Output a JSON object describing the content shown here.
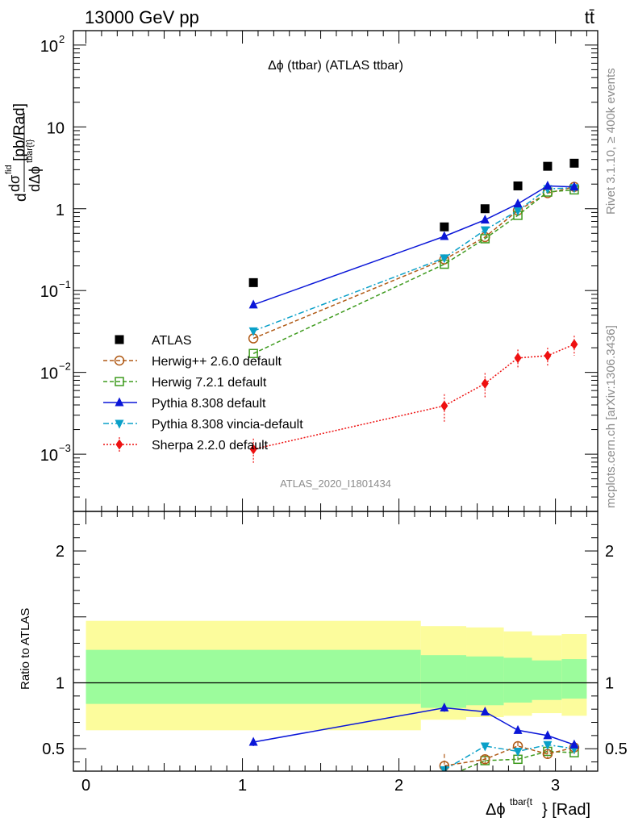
{
  "header": {
    "left": "13000 GeV pp",
    "right": "tt̄"
  },
  "side_labels": {
    "rivet": "Rivet 3.1.10, ≥ 400k events",
    "mcplots": "mcplots.cern.ch [arXiv:1306.3436]"
  },
  "chart_data": [
    {
      "type": "scatter",
      "panel": "main",
      "title": "Δϕ (ttbar) (ATLAS ttbar)",
      "watermark": "ATLAS_2020_I1801434",
      "ylabel": "dσ^{fid}/dΔϕ^{tbar{t}} [pb/Rad]",
      "yscale": "log",
      "ylim": [
        0.0002,
        150
      ],
      "xlim": [
        -0.08,
        3.27
      ],
      "yticks": [
        {
          "v": 0.001,
          "base": "10",
          "exp": "−3"
        },
        {
          "v": 0.01,
          "base": "10",
          "exp": "−2"
        },
        {
          "v": 0.1,
          "base": "10",
          "exp": "−1"
        },
        {
          "v": 1,
          "base": "1",
          "exp": ""
        },
        {
          "v": 10,
          "base": "10",
          "exp": ""
        },
        {
          "v": 100,
          "base": "10",
          "exp": "2"
        }
      ],
      "legend_position": "left",
      "series": [
        {
          "name": "ATLAS",
          "marker": "square-filled",
          "color": "#000000",
          "line": "none",
          "x": [
            1.07,
            2.29,
            2.55,
            2.76,
            2.95,
            3.12
          ],
          "y": [
            0.125,
            0.6,
            1.0,
            1.9,
            3.3,
            3.6
          ],
          "err": [
            0,
            0,
            0,
            0,
            0,
            0
          ]
        },
        {
          "name": "Herwig++ 2.6.0 default",
          "marker": "circle-open",
          "color": "#b05a16",
          "line": "dashed",
          "x": [
            1.07,
            2.29,
            2.55,
            2.76,
            2.95,
            3.12
          ],
          "y": [
            0.026,
            0.24,
            0.45,
            0.95,
            1.55,
            1.85
          ],
          "err": [
            0,
            0,
            0,
            0,
            0,
            0
          ]
        },
        {
          "name": "Herwig 7.2.1 default",
          "marker": "square-open",
          "color": "#3f9b1f",
          "line": "dashed",
          "x": [
            1.07,
            2.29,
            2.55,
            2.76,
            2.95,
            3.12
          ],
          "y": [
            0.017,
            0.21,
            0.43,
            0.83,
            1.6,
            1.7
          ],
          "err": [
            0,
            0,
            0,
            0,
            0,
            0
          ]
        },
        {
          "name": "Pythia 8.308 default",
          "marker": "triangle-up-filled",
          "color": "#0a16d8",
          "line": "solid",
          "x": [
            1.07,
            2.29,
            2.55,
            2.76,
            2.95,
            3.12
          ],
          "y": [
            0.067,
            0.46,
            0.73,
            1.15,
            1.9,
            1.85
          ],
          "err": [
            0,
            0,
            0,
            0,
            0,
            0
          ]
        },
        {
          "name": "Pythia 8.308 vincia-default",
          "marker": "triangle-down-filled",
          "color": "#0aa0c8",
          "line": "dashdot",
          "x": [
            1.07,
            2.29,
            2.55,
            2.76,
            2.95,
            3.12
          ],
          "y": [
            0.032,
            0.25,
            0.55,
            0.95,
            1.75,
            1.8
          ],
          "err": [
            0,
            0,
            0,
            0,
            0,
            0
          ]
        },
        {
          "name": "Sherpa 2.2.0 default",
          "marker": "diamond-filled",
          "color": "#ee1111",
          "line": "dotted",
          "x": [
            1.07,
            2.29,
            2.55,
            2.76,
            2.95,
            3.12
          ],
          "y": [
            0.00115,
            0.0039,
            0.0073,
            0.015,
            0.016,
            0.022
          ],
          "err": [
            0.0004,
            0.0015,
            0.0025,
            0.004,
            0.004,
            0.006
          ]
        }
      ]
    },
    {
      "type": "line",
      "panel": "ratio",
      "ylabel": "Ratio to ATLAS",
      "xlabel": "Δϕ^{tbar{t}} [Rad]",
      "xlim": [
        -0.08,
        3.27
      ],
      "ylim": [
        0.33,
        2.3
      ],
      "xticks": [
        0,
        1,
        2,
        3
      ],
      "yticks": [
        0.5,
        1,
        2
      ],
      "bands": {
        "inner_color": "#9cfc9c",
        "outer_color": "#fcfc9c",
        "bins": [
          {
            "x": [
              0.0,
              2.14
            ],
            "inner": [
              0.84,
              1.25
            ],
            "outer": [
              0.64,
              1.47
            ]
          },
          {
            "x": [
              2.14,
              2.43
            ],
            "inner": [
              0.81,
              1.21
            ],
            "outer": [
              0.72,
              1.43
            ]
          },
          {
            "x": [
              2.43,
              2.67
            ],
            "inner": [
              0.83,
              1.2
            ],
            "outer": [
              0.74,
              1.42
            ]
          },
          {
            "x": [
              2.67,
              2.85
            ],
            "inner": [
              0.85,
              1.19
            ],
            "outer": [
              0.75,
              1.39
            ]
          },
          {
            "x": [
              2.85,
              3.04
            ],
            "inner": [
              0.87,
              1.17
            ],
            "outer": [
              0.77,
              1.36
            ]
          },
          {
            "x": [
              3.04,
              3.2
            ],
            "inner": [
              0.88,
              1.18
            ],
            "outer": [
              0.75,
              1.37
            ]
          }
        ]
      },
      "series": [
        {
          "name": "Herwig++ 2.6.0 default",
          "marker": "circle-open",
          "color": "#b05a16",
          "line": "dashed",
          "x": [
            2.29,
            2.55,
            2.76,
            2.95,
            3.12
          ],
          "y": [
            0.37,
            0.42,
            0.52,
            0.46,
            0.51
          ],
          "err": [
            0.09,
            0.03,
            0.03,
            0.03,
            0.02
          ]
        },
        {
          "name": "Herwig 7.2.1 default",
          "marker": "square-open",
          "color": "#3f9b1f",
          "line": "dashed",
          "x": [
            2.29,
            2.55,
            2.76,
            2.95,
            3.12
          ],
          "y": [
            0.28,
            0.41,
            0.42,
            0.48,
            0.47
          ],
          "err": [
            0.02,
            0.02,
            0.02,
            0.02,
            0.02
          ]
        },
        {
          "name": "Pythia 8.308 default",
          "marker": "triangle-up-filled",
          "color": "#0a16d8",
          "line": "solid",
          "x": [
            1.07,
            2.29,
            2.55,
            2.76,
            2.95,
            3.12
          ],
          "y": [
            0.55,
            0.81,
            0.78,
            0.64,
            0.6,
            0.53
          ],
          "err": [
            0.03,
            0.03,
            0.02,
            0.02,
            0.02,
            0.02
          ]
        },
        {
          "name": "Pythia 8.308 vincia-default",
          "marker": "triangle-down-filled",
          "color": "#0aa0c8",
          "line": "dashdot",
          "x": [
            2.29,
            2.55,
            2.76,
            2.95,
            3.12
          ],
          "y": [
            0.34,
            0.52,
            0.48,
            0.53,
            0.5
          ],
          "err": [
            0.02,
            0.02,
            0.02,
            0.02,
            0.02
          ]
        }
      ]
    }
  ]
}
